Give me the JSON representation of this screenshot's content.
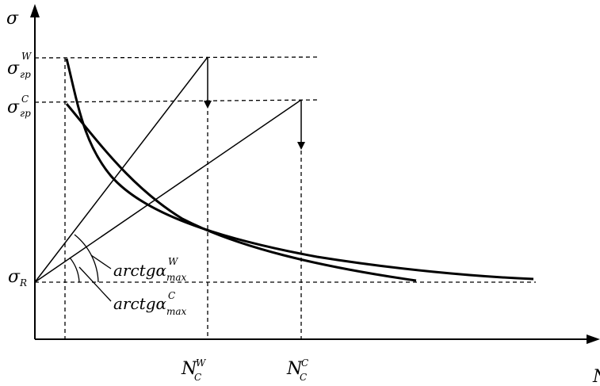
{
  "diagram": {
    "y_axis": {
      "symbol": "σ"
    },
    "x_axis": {
      "symbol": "N"
    },
    "y_labels": {
      "sigma_gr_w": {
        "base": "σ",
        "sub": "гр",
        "sup": "W"
      },
      "sigma_gr_c": {
        "base": "σ",
        "sub": "гр",
        "sup": "C"
      },
      "sigma_r": {
        "base": "σ",
        "sub": "R"
      }
    },
    "x_labels": {
      "n_c_w": {
        "base": "N",
        "sub": "C",
        "sup": "W"
      },
      "n_c_c": {
        "base": "N",
        "sub": "C",
        "sup": "C"
      }
    },
    "angle_labels": {
      "w": {
        "text": "arctgα",
        "sub": "max",
        "sup": "W"
      },
      "c": {
        "text": "arctgα",
        "sub": "max",
        "sup": "C"
      }
    }
  }
}
